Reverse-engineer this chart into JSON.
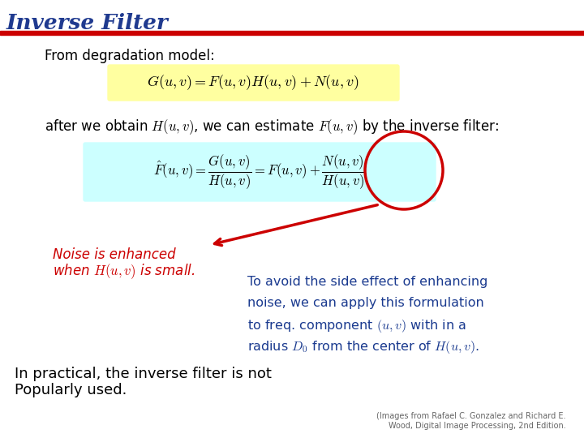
{
  "title": "Inverse Filter",
  "title_color": "#1F3A8F",
  "bg_color": "#FFFFFF",
  "header_bar_red": "#CC0000",
  "from_text": "From degradation model:",
  "eq1_latex": "$G(u,v) = F(u,v)H(u,v) + N(u,v)$",
  "eq1_bg": "#FFFFA0",
  "eq2_latex": "$\\hat{F}(u,v) = \\dfrac{G(u,v)}{H(u,v)} = F(u,v) + \\dfrac{N(u,v)}{H(u,v)}$",
  "eq2_bg": "#CCFFFF",
  "noise_color": "#CC0000",
  "noise_line1": "Noise is enhanced",
  "noise_line2": "when $H(u,v)$ is small.",
  "avoid_color": "#1A3A8F",
  "avoid_line1": "To avoid the side effect of enhancing",
  "avoid_line2": "noise, we can apply this formulation",
  "avoid_line3": "to freq. component $(u,v)$ with in a",
  "avoid_line4": "radius $D_0$ from the center of $H(u,v)$.",
  "practical_color": "#000000",
  "practical_line1": "In practical, the inverse filter is not",
  "practical_line2": "Popularly used.",
  "citation_color": "#666666",
  "citation_line1": "(Images from Rafael C. Gonzalez and Richard E.",
  "citation_line2": "Wood, Digital Image Processing, 2nd Edition."
}
